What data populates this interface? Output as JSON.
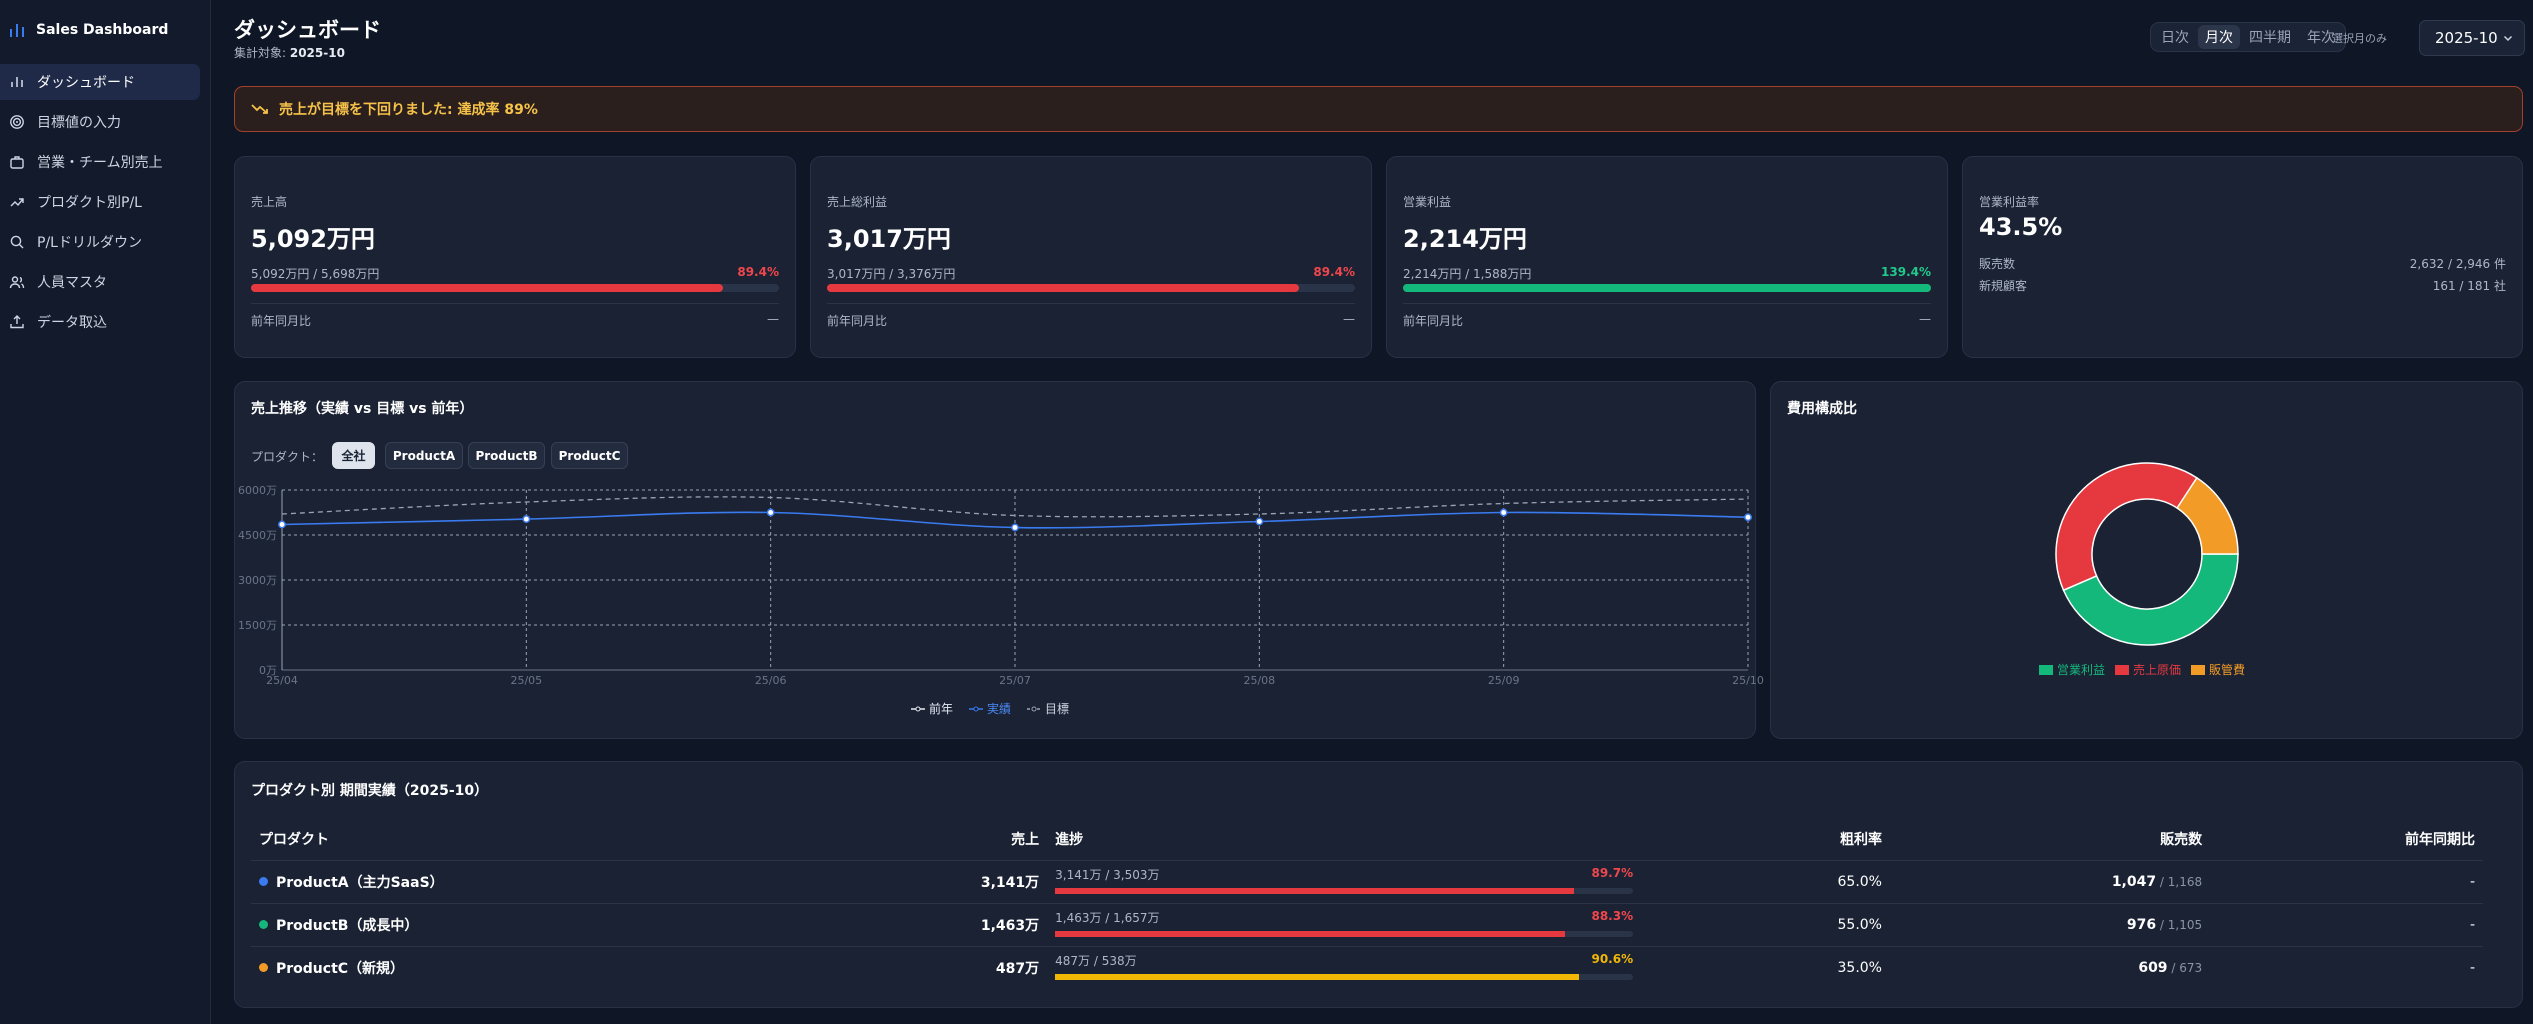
{
  "app": {
    "title": "Sales Dashboard"
  },
  "sidebar": {
    "items": [
      {
        "label": "ダッシュボード",
        "icon": "bar-chart-icon",
        "active": true
      },
      {
        "label": "目標値の入力",
        "icon": "target-icon"
      },
      {
        "label": "営業・チーム別売上",
        "icon": "briefcase-icon"
      },
      {
        "label": "プロダクト別P/L",
        "icon": "trending-up-icon"
      },
      {
        "label": "P/Lドリルダウン",
        "icon": "search-icon"
      },
      {
        "label": "人員マスタ",
        "icon": "users-icon"
      },
      {
        "label": "データ取込",
        "icon": "upload-icon"
      }
    ]
  },
  "header": {
    "title": "ダッシュボード",
    "subtitle_prefix": "集計対象: ",
    "subtitle_value": "2025-10",
    "periods": [
      "日次",
      "月次",
      "四半期",
      "年次"
    ],
    "active_period": "月次",
    "selected_only_label": "選択月のみ",
    "month_value": "2025-10"
  },
  "alert": {
    "text": "売上が目標を下回りました: 達成率 89%",
    "icon": "trending-down-icon"
  },
  "kpis": [
    {
      "label": "売上高",
      "value": "5,092万円",
      "ratio": "5,092万円 / 5,698万円",
      "pct": "89.4%",
      "progress": 0.894,
      "color": "#e5393f",
      "yoy_label": "前年同月比",
      "yoy_value": "—"
    },
    {
      "label": "売上総利益",
      "value": "3,017万円",
      "ratio": "3,017万円 / 3,376万円",
      "pct": "89.4%",
      "progress": 0.894,
      "color": "#e5393f",
      "yoy_label": "前年同月比",
      "yoy_value": "—"
    },
    {
      "label": "営業利益",
      "value": "2,214万円",
      "ratio": "2,214万円 / 1,588万円",
      "pct": "139.4%",
      "progress": 1.0,
      "color": "#14b87a",
      "yoy_label": "前年同月比",
      "yoy_value": "—"
    }
  ],
  "kpi_margin": {
    "label": "営業利益率",
    "value": "43.5%",
    "rows": [
      {
        "label": "販売数",
        "value": "2,632 / 2,946 件"
      },
      {
        "label": "新規顧客",
        "value": "161 / 181 社"
      }
    ]
  },
  "trend": {
    "title": "売上推移（実績 vs 目標 vs 前年）",
    "product_label": "プロダクト：",
    "chips": [
      "全社",
      "ProductA",
      "ProductB",
      "ProductC"
    ],
    "active_chip": "全社"
  },
  "chart_data": [
    {
      "type": "line",
      "x": [
        "25/04",
        "25/05",
        "25/06",
        "25/07",
        "25/08",
        "25/09",
        "25/10"
      ],
      "y_ticks": [
        "6000万",
        "4500万",
        "3000万",
        "1500万",
        "0万"
      ],
      "ylim": [
        0,
        6000
      ],
      "grid": true,
      "legend_position": "bottom",
      "series": [
        {
          "name": "前年",
          "values": [
            null,
            null,
            null,
            null,
            null,
            null,
            null
          ],
          "color": "#e6ebf3"
        },
        {
          "name": "実績",
          "values": [
            4850,
            5030,
            5250,
            4750,
            4950,
            5250,
            5092
          ],
          "color": "#3b7bf0"
        },
        {
          "name": "目標",
          "values": [
            5200,
            5600,
            5750,
            5150,
            5200,
            5550,
            5698
          ],
          "color": "#9aa4b6",
          "dashed": true
        }
      ]
    },
    {
      "type": "pie",
      "title": "費用構成比",
      "legend_position": "bottom",
      "categories": [
        "営業利益",
        "売上原価",
        "販管費"
      ],
      "values": [
        2214,
        2075,
        803
      ],
      "colors": [
        "#14b87a",
        "#e5393f",
        "#f29b26"
      ]
    }
  ],
  "products": {
    "title": "プロダクト別 期間実績（2025-10）",
    "columns": [
      "プロダクト",
      "売上",
      "進捗",
      "粗利率",
      "販売数",
      "前年同期比"
    ],
    "rows": [
      {
        "name": "ProductA（主力SaaS）",
        "dot": "#3b7bf0",
        "sales": "3,141万",
        "progress_text": "3,141万 / 3,503万",
        "pct": "89.7%",
        "progress": 0.897,
        "bar_color": "#e5393f",
        "pct_color": "#f0474d",
        "margin": "65.0%",
        "units": "1,047",
        "units_target": " / 1,168",
        "yoy": "-"
      },
      {
        "name": "ProductB（成長中）",
        "dot": "#14b87a",
        "sales": "1,463万",
        "progress_text": "1,463万 / 1,657万",
        "pct": "88.3%",
        "progress": 0.883,
        "bar_color": "#e5393f",
        "pct_color": "#f0474d",
        "margin": "55.0%",
        "units": "976",
        "units_target": " / 1,105",
        "yoy": "-"
      },
      {
        "name": "ProductC（新規）",
        "dot": "#f29b26",
        "sales": "487万",
        "progress_text": "487万 / 538万",
        "pct": "90.6%",
        "progress": 0.906,
        "bar_color": "#f2b705",
        "pct_color": "#f2b705",
        "margin": "35.0%",
        "units": "609",
        "units_target": " / 673",
        "yoy": "-"
      }
    ]
  }
}
